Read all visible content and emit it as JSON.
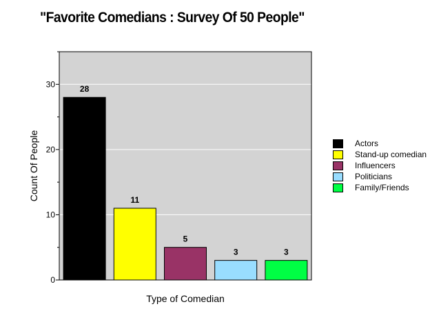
{
  "chart_data": {
    "type": "bar",
    "title": "\"Favorite Comedians : Survey Of 50 People\"",
    "xlabel": "Type of Comedian",
    "ylabel": "Count Of People",
    "ylim": [
      0,
      35
    ],
    "yticks": [
      0,
      10,
      20,
      30
    ],
    "grid": true,
    "legend_position": "right",
    "plot_background": "#d3d3d3",
    "categories": [
      "Actors",
      "Stand-up comedian",
      "Influencers",
      "Politicians",
      "Family/Friends"
    ],
    "values": [
      28,
      11,
      5,
      3,
      3
    ],
    "colors": [
      "#000000",
      "#ffff00",
      "#993366",
      "#99ddff",
      "#00ff44"
    ],
    "data_labels": [
      "28",
      "11",
      "5",
      "3",
      "3"
    ]
  }
}
